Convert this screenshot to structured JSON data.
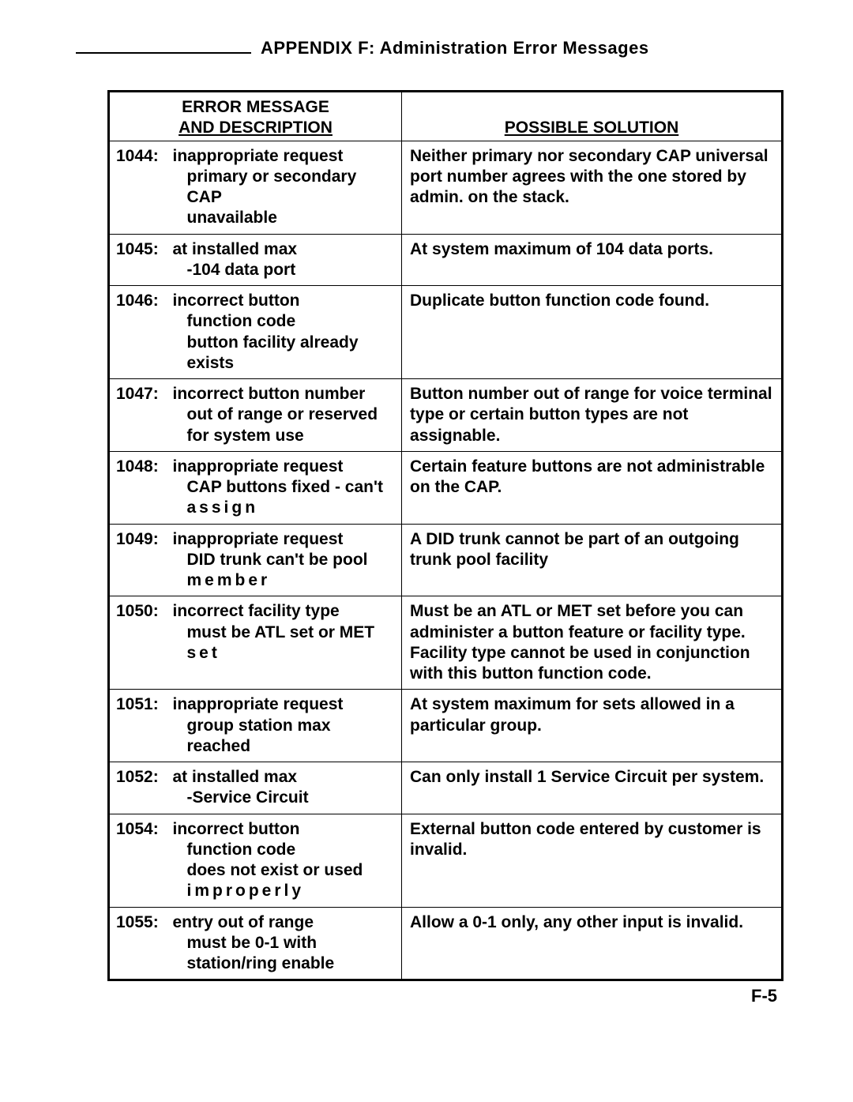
{
  "header": {
    "appendix_title": "APPENDIX F: Administration Error Messages"
  },
  "table": {
    "columns": {
      "left_line1": "ERROR MESSAGE",
      "left_line2": "AND  DESCRIPTION",
      "right": "POSSIBLE  SOLUTION"
    },
    "rows": [
      {
        "code": "1044:",
        "desc_l1": "inappropriate  request",
        "desc_l2": "primary or secondary CAP",
        "desc_l3": "unavailable",
        "sol": "Neither primary nor secondary CAP universal port number agrees with the one stored by admin. on the stack."
      },
      {
        "code": "1045:",
        "desc_l1": "at installed max",
        "desc_l2": "-104 data port",
        "sol": "At system maximum of 104 data ports."
      },
      {
        "code": "1046:",
        "desc_l1": "incorrect   button",
        "desc_l2": "function  code",
        "desc_l3": "button facility already",
        "desc_l4": "exists",
        "sol": "Duplicate button function code found."
      },
      {
        "code": "1047:",
        "desc_l1": "incorrect button number",
        "desc_l2": "out of range or reserved",
        "desc_l3": "for system  use",
        "sol": "Button number out of range for voice terminal type or certain button types are  not  assignable."
      },
      {
        "code": "1048:",
        "desc_l1": "inappropriate  request",
        "desc_l2": "CAP buttons fixed - can't",
        "desc_l3_spaced": "assign",
        "sol": "Certain feature buttons are not administrable  on  the  CAP."
      },
      {
        "code": "1049:",
        "desc_l1": "inappropriate  request",
        "desc_l2": "DID trunk can't be pool",
        "desc_l3_spaced": "member",
        "sol": "A DID trunk cannot be part of an outgoing trunk pool facility"
      },
      {
        "code": "1050:",
        "desc_l1": "incorrect facility type",
        "desc_l2": "must be ATL set or MET",
        "desc_l3_spaced": "set",
        "sol": "Must be an ATL or MET set before you can administer a button feature or facility type. Facility type cannot be used in conjunction with this button function code."
      },
      {
        "code": "1051:",
        "desc_l1": "inappropriate  request",
        "desc_l2": "group station max reached",
        "sol": "At system maximum for sets allowed in a particular group."
      },
      {
        "code": "1052:",
        "desc_l1": "at installed max",
        "desc_l2": "-Service   Circuit",
        "sol": "Can only install 1 Service Circuit per system."
      },
      {
        "code": "1054:",
        "desc_l1": "incorrect button",
        "desc_l2": "function   code",
        "desc_l3": "does not exist or used",
        "desc_l4_spaced": "improperly",
        "sol": "External button code entered by customer is invalid."
      },
      {
        "code": "1055:",
        "desc_l1": "entry out of range",
        "desc_l2": "must be 0-1 with",
        "desc_l3": "station/ring  enable",
        "sol": "Allow a 0-1 only, any other input is invalid."
      }
    ]
  },
  "footer": "F-5"
}
